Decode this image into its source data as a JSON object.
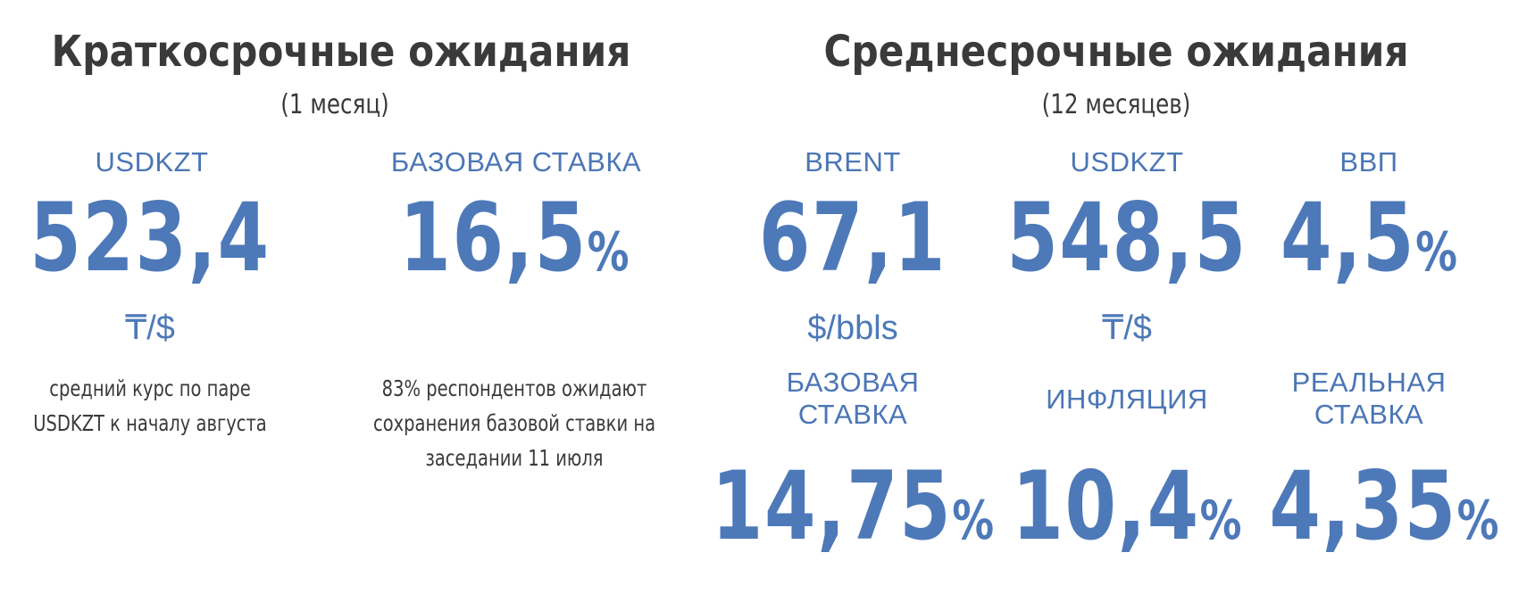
{
  "short_term": {
    "title": "Краткосрочные ожидания",
    "subtitle": "(1 месяц)",
    "usdkzt": {
      "label": "USDKZT",
      "value": "523,4",
      "unit": "₸/$",
      "note_line1": "средний курс по паре",
      "note_line2": "USDKZT к началу августа"
    },
    "base_rate": {
      "label": "БАЗОВАЯ СТАВКА",
      "value": "16,5",
      "suffix": "%",
      "note_line1": "83% респондентов ожидают",
      "note_line2": "сохранения базовой ставки на",
      "note_line3": "заседании 11 июля"
    }
  },
  "mid_term": {
    "title": "Среднесрочные ожидания",
    "subtitle": "(12 месяцев)",
    "brent": {
      "label": "BRENT",
      "value": "67,1",
      "unit": "$/bbls"
    },
    "usdkzt": {
      "label": "USDKZT",
      "value": "548,5",
      "unit": "₸/$"
    },
    "gdp": {
      "label": "ВВП",
      "value": "4,5",
      "suffix": "%"
    },
    "base_rate": {
      "label_line1": "БАЗОВАЯ",
      "label_line2": "СТАВКА",
      "value": "14,75",
      "suffix": "%"
    },
    "inflation": {
      "label": "ИНФЛЯЦИЯ",
      "value": "10,4",
      "suffix": "%"
    },
    "real_rate": {
      "label_line1": "РЕАЛЬНАЯ",
      "label_line2": "СТАВКА",
      "value": "4,35",
      "suffix": "%"
    }
  }
}
